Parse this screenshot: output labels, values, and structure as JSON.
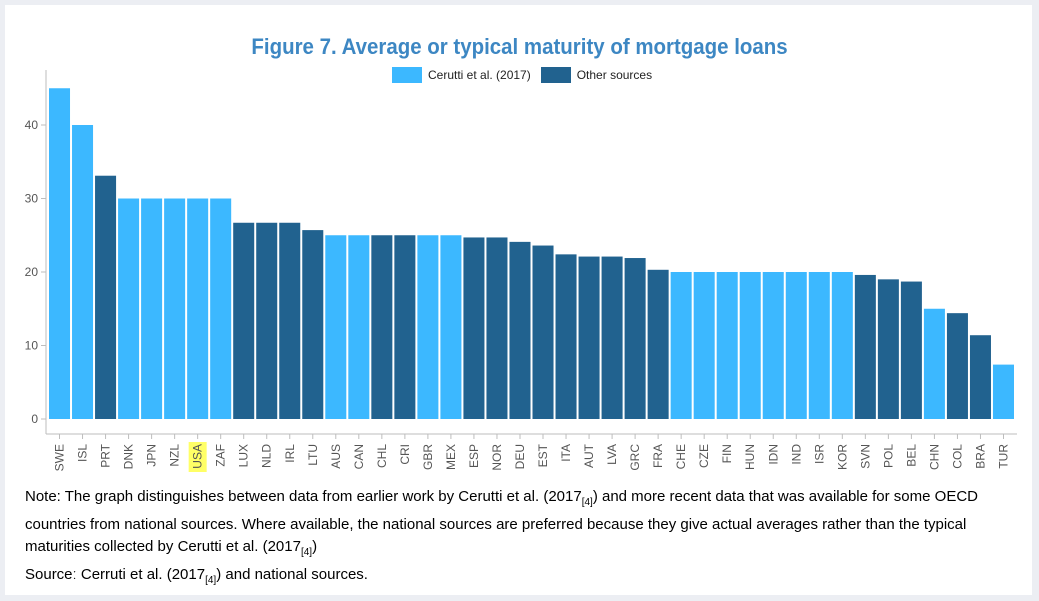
{
  "chart_data": {
    "type": "bar",
    "title": "Figure 7. Average or typical maturity of mortgage loans",
    "xlabel": "",
    "ylabel": "",
    "ylim": [
      0,
      47
    ],
    "yticks": [
      0,
      10,
      20,
      30,
      40
    ],
    "grid": false,
    "legend_position": "top-center",
    "highlighted_category": "USA",
    "highlight_color": "#ffff66",
    "series": [
      {
        "name": "Cerutti et al. (2017)",
        "color": "#3cb8ff"
      },
      {
        "name": "Other sources",
        "color": "#21628f"
      }
    ],
    "categories": [
      "SWE",
      "ISL",
      "PRT",
      "DNK",
      "JPN",
      "NZL",
      "USA",
      "ZAF",
      "LUX",
      "NLD",
      "IRL",
      "LTU",
      "AUS",
      "CAN",
      "CHL",
      "CRI",
      "GBR",
      "MEX",
      "ESP",
      "NOR",
      "DEU",
      "EST",
      "ITA",
      "AUT",
      "LVA",
      "GRC",
      "FRA",
      "CHE",
      "CZE",
      "FIN",
      "HUN",
      "IDN",
      "IND",
      "ISR",
      "KOR",
      "SVN",
      "POL",
      "BEL",
      "CHN",
      "COL",
      "BRA",
      "TUR"
    ],
    "values": [
      45,
      40,
      33.1,
      30,
      30,
      30,
      30,
      30,
      26.7,
      26.7,
      26.7,
      25.7,
      25,
      25,
      25,
      25,
      25,
      25,
      24.7,
      24.7,
      24.1,
      23.6,
      22.4,
      22.1,
      22.1,
      21.9,
      20.3,
      20,
      20,
      20,
      20,
      20,
      20,
      20,
      20,
      19.6,
      19,
      18.7,
      15,
      14.4,
      11.4,
      7.4
    ],
    "sources": [
      "Cerutti et al. (2017)",
      "Cerutti et al. (2017)",
      "Other sources",
      "Cerutti et al. (2017)",
      "Cerutti et al. (2017)",
      "Cerutti et al. (2017)",
      "Cerutti et al. (2017)",
      "Cerutti et al. (2017)",
      "Other sources",
      "Other sources",
      "Other sources",
      "Other sources",
      "Cerutti et al. (2017)",
      "Cerutti et al. (2017)",
      "Other sources",
      "Other sources",
      "Cerutti et al. (2017)",
      "Cerutti et al. (2017)",
      "Other sources",
      "Other sources",
      "Other sources",
      "Other sources",
      "Other sources",
      "Other sources",
      "Other sources",
      "Other sources",
      "Other sources",
      "Cerutti et al. (2017)",
      "Cerutti et al. (2017)",
      "Cerutti et al. (2017)",
      "Cerutti et al. (2017)",
      "Cerutti et al. (2017)",
      "Cerutti et al. (2017)",
      "Cerutti et al. (2017)",
      "Cerutti et al. (2017)",
      "Other sources",
      "Other sources",
      "Other sources",
      "Cerutti et al. (2017)",
      "Other sources",
      "Other sources",
      "Cerutti et al. (2017)"
    ]
  },
  "note": {
    "prefix": "Note: The graph distinguishes between data from earlier work by Cerutti et al. (2017",
    "ref1": "[4]",
    "middle": ") and more recent data that was available for some OECD countries from national sources. Where available, the national sources are preferred because they give actual averages rather than the typical maturities collected by Cerutti et al. (2017",
    "ref2": "[4]",
    "suffix": ")"
  },
  "source": {
    "prefix": "Sourceː Cerruti et al. (2017",
    "ref": "[4]",
    "suffix": ") and national sources."
  }
}
